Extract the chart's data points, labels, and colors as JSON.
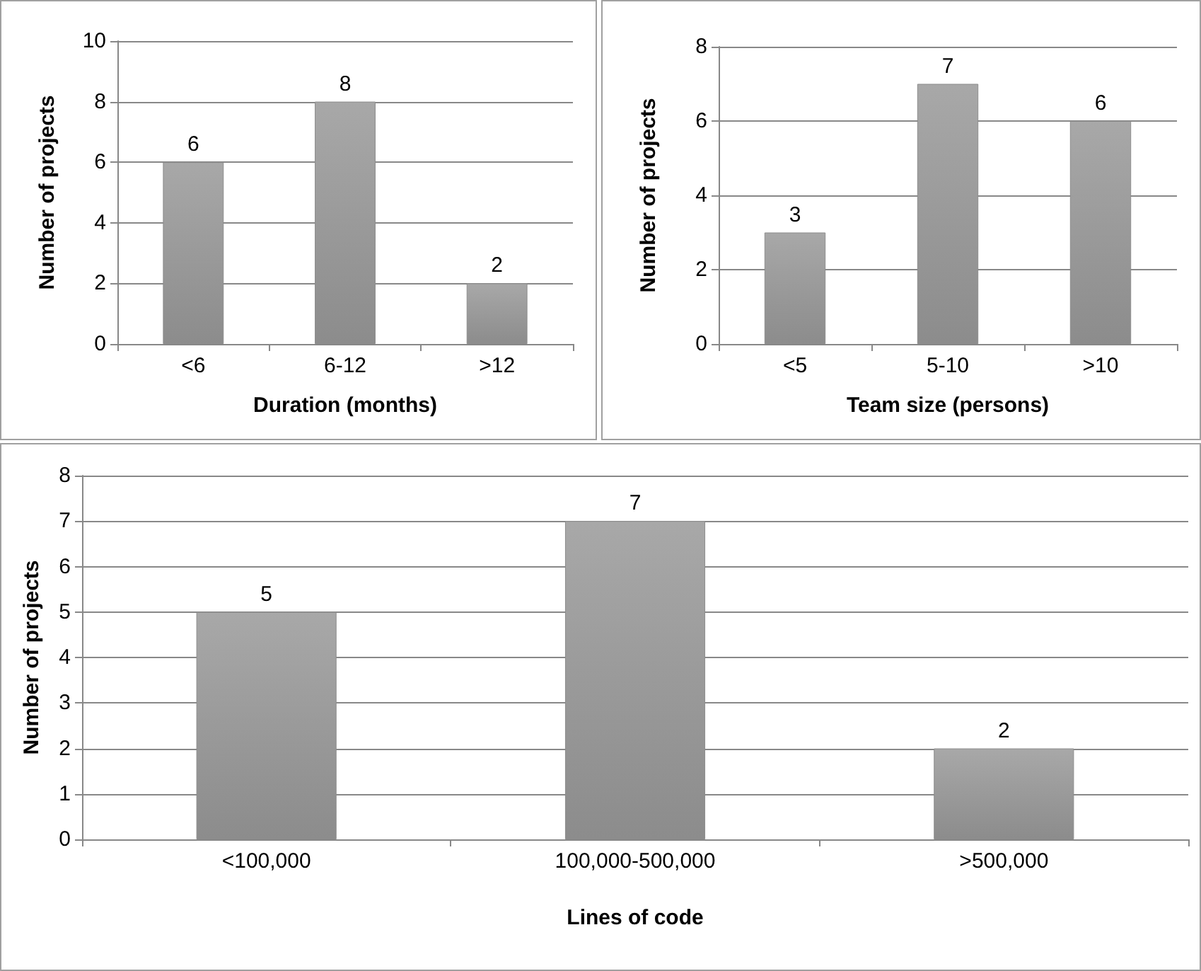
{
  "chart_data": [
    {
      "type": "bar",
      "xlabel": "Duration (months)",
      "ylabel": "Number of projects",
      "categories": [
        "<6",
        "6-12",
        ">12"
      ],
      "values": [
        6,
        8,
        2
      ],
      "color": "#8c8c8c",
      "ylim": [
        0,
        10
      ],
      "yticks": [
        0,
        2,
        4,
        6,
        8,
        10
      ],
      "grid": "y",
      "data_labels": true
    },
    {
      "type": "bar",
      "xlabel": "Team size (persons)",
      "ylabel": "Number of projects",
      "categories": [
        "<5",
        "5-10",
        ">10"
      ],
      "values": [
        3,
        7,
        6
      ],
      "color": "#8c8c8c",
      "ylim": [
        0,
        8
      ],
      "yticks": [
        0,
        2,
        4,
        6,
        8
      ],
      "grid": "y",
      "data_labels": true
    },
    {
      "type": "bar",
      "xlabel": "Lines of code",
      "ylabel": "Number of projects",
      "categories": [
        "<100,000",
        "100,000-500,000",
        ">500,000"
      ],
      "values": [
        5,
        7,
        2
      ],
      "color": "#8c8c8c",
      "ylim": [
        0,
        8
      ],
      "yticks": [
        0,
        1,
        2,
        3,
        4,
        5,
        6,
        7,
        8
      ],
      "grid": "y",
      "data_labels": true
    }
  ]
}
